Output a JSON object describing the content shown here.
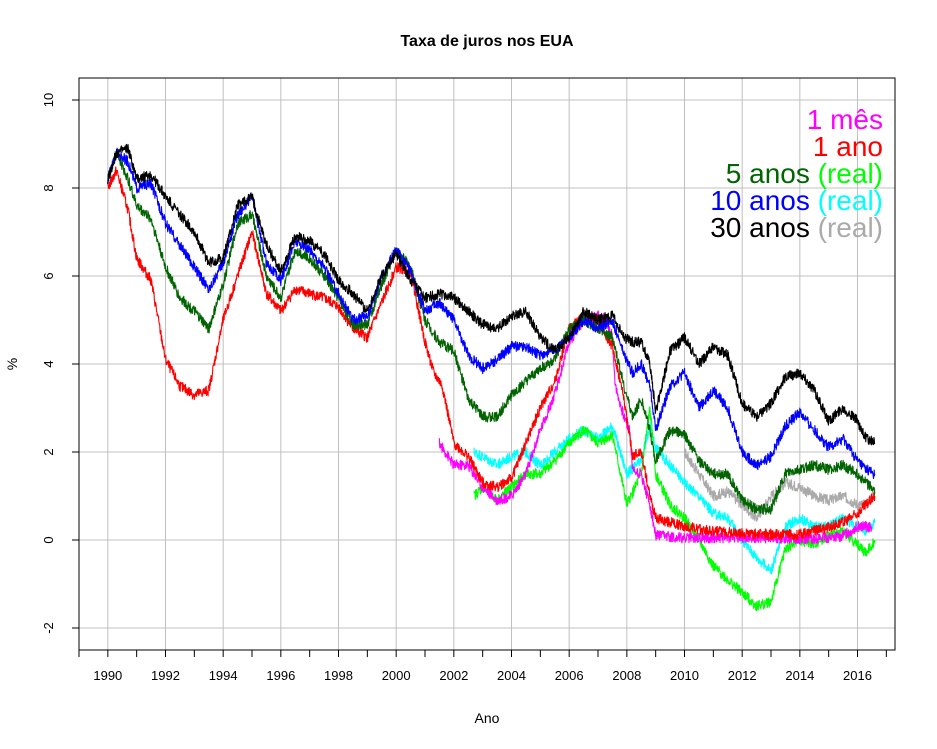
{
  "chart_data": {
    "type": "line",
    "title": "Taxa de juros nos EUA",
    "xlabel": "Ano",
    "ylabel": "%",
    "xlim": [
      1989.0,
      2017.3
    ],
    "ylim": [
      -2.5,
      10.5
    ],
    "grid": true,
    "x_ticks": [
      1990,
      1992,
      1994,
      1996,
      1998,
      2000,
      2002,
      2004,
      2006,
      2008,
      2010,
      2012,
      2014,
      2016
    ],
    "x_tick_labels": [
      "1990",
      "1992",
      "1994",
      "1996",
      "1998",
      "2000",
      "2002",
      "2004",
      "2006",
      "2008",
      "2010",
      "2012",
      "2014",
      "2016"
    ],
    "y_ticks": [
      -2,
      0,
      2,
      4,
      6,
      8,
      10
    ],
    "y_tick_labels": [
      "-2",
      "0",
      "2",
      "4",
      "6",
      "8",
      "10"
    ],
    "legend": {
      "position": "top-right",
      "rows": [
        {
          "parts": [
            {
              "text": "1 mês",
              "color": "#ff00ff"
            }
          ]
        },
        {
          "parts": [
            {
              "text": "1 ano",
              "color": "#ff0000"
            }
          ]
        },
        {
          "parts": [
            {
              "text": "5 anos",
              "color": "#006400"
            },
            {
              "text": " (real)",
              "color": "#00ff00"
            }
          ]
        },
        {
          "parts": [
            {
              "text": "10 anos",
              "color": "#0000ff"
            },
            {
              "text": " (real)",
              "color": "#00ffff"
            }
          ]
        },
        {
          "parts": [
            {
              "text": "30 anos",
              "color": "#000000"
            },
            {
              "text": " (real)",
              "color": "#aaaaaa"
            }
          ]
        }
      ]
    },
    "series": [
      {
        "name": "30 anos (real)",
        "color": "#aaaaaa",
        "x": [
          2010.0,
          2010.5,
          2011.0,
          2011.5,
          2012.0,
          2012.5,
          2013.0,
          2013.5,
          2014.0,
          2014.5,
          2015.0,
          2015.5,
          2016.0,
          2016.3,
          2016.6
        ],
        "y": [
          2.0,
          1.5,
          1.0,
          1.1,
          0.8,
          0.5,
          1.0,
          1.3,
          1.2,
          1.0,
          0.9,
          1.0,
          0.8,
          0.8,
          1.1
        ]
      },
      {
        "name": "10 anos (real)",
        "color": "#00ffff",
        "x": [
          2002.7,
          2003.0,
          2003.5,
          2004.0,
          2004.5,
          2005.0,
          2005.5,
          2006.0,
          2006.5,
          2007.0,
          2007.5,
          2008.0,
          2008.5,
          2008.8,
          2009.0,
          2009.5,
          2010.0,
          2010.5,
          2011.0,
          2011.5,
          2012.0,
          2012.5,
          2013.0,
          2013.5,
          2014.0,
          2014.5,
          2015.0,
          2015.5,
          2016.0,
          2016.3,
          2016.6
        ],
        "y": [
          2.0,
          1.9,
          1.7,
          1.9,
          2.0,
          1.7,
          2.0,
          2.3,
          2.5,
          2.3,
          2.6,
          1.5,
          1.8,
          2.6,
          2.1,
          1.7,
          1.3,
          1.0,
          0.6,
          0.5,
          0.0,
          -0.4,
          -0.7,
          0.3,
          0.5,
          0.3,
          0.3,
          0.5,
          0.3,
          0.2,
          0.4
        ]
      },
      {
        "name": "5 anos (real)",
        "color": "#00ff00",
        "x": [
          2002.7,
          2003.0,
          2003.5,
          2004.0,
          2004.5,
          2005.0,
          2005.5,
          2006.0,
          2006.5,
          2007.0,
          2007.5,
          2008.0,
          2008.5,
          2008.8,
          2009.0,
          2009.5,
          2010.0,
          2010.5,
          2011.0,
          2011.5,
          2012.0,
          2012.5,
          2013.0,
          2013.5,
          2014.0,
          2014.5,
          2015.0,
          2015.5,
          2016.0,
          2016.3,
          2016.6
        ],
        "y": [
          1.0,
          1.2,
          0.9,
          1.2,
          1.5,
          1.5,
          1.8,
          2.2,
          2.5,
          2.2,
          2.4,
          0.8,
          1.5,
          3.0,
          1.5,
          0.8,
          0.5,
          0.0,
          -0.6,
          -0.9,
          -1.2,
          -1.5,
          -1.4,
          -0.2,
          0.0,
          -0.1,
          0.1,
          0.2,
          -0.1,
          -0.3,
          0.0
        ]
      },
      {
        "name": "1 mês",
        "color": "#ff00ff",
        "x": [
          2001.5,
          2002.0,
          2002.5,
          2003.0,
          2003.5,
          2004.0,
          2004.5,
          2005.0,
          2005.5,
          2006.0,
          2006.5,
          2007.0,
          2007.3,
          2007.5,
          2007.6,
          2007.9,
          2008.1,
          2008.2,
          2008.5,
          2008.8,
          2009.0,
          2010.0,
          2011.0,
          2012.0,
          2013.0,
          2014.0,
          2015.0,
          2015.5,
          2016.0,
          2016.5
        ],
        "y": [
          2.2,
          1.7,
          1.7,
          1.2,
          0.9,
          1.0,
          1.5,
          2.5,
          3.3,
          4.5,
          5.0,
          5.1,
          5.0,
          4.6,
          3.5,
          2.8,
          2.5,
          1.6,
          1.5,
          0.8,
          0.1,
          0.05,
          0.05,
          0.05,
          0.05,
          0.03,
          0.05,
          0.1,
          0.3,
          0.3
        ]
      },
      {
        "name": "1 ano",
        "color": "#ff0000",
        "x": [
          1990.0,
          1990.3,
          1990.7,
          1991.0,
          1991.5,
          1992.0,
          1992.5,
          1993.0,
          1993.5,
          1994.0,
          1994.5,
          1995.0,
          1995.5,
          1996.0,
          1996.5,
          1997.0,
          1997.5,
          1998.0,
          1998.5,
          1999.0,
          1999.5,
          2000.0,
          2000.5,
          2001.0,
          2001.3,
          2001.6,
          2002.0,
          2002.5,
          2003.0,
          2003.5,
          2004.0,
          2004.5,
          2005.0,
          2005.5,
          2006.0,
          2006.5,
          2007.0,
          2007.5,
          2007.9,
          2008.2,
          2008.5,
          2008.8,
          2009.0,
          2009.5,
          2010.0,
          2011.0,
          2012.0,
          2013.0,
          2014.0,
          2015.0,
          2015.5,
          2016.0,
          2016.6
        ],
        "y": [
          8.0,
          8.4,
          7.5,
          6.4,
          5.9,
          4.1,
          3.5,
          3.3,
          3.4,
          5.0,
          6.0,
          7.0,
          5.6,
          5.2,
          5.7,
          5.6,
          5.5,
          5.3,
          4.8,
          4.6,
          5.4,
          6.2,
          6.1,
          4.5,
          3.8,
          3.5,
          2.2,
          1.9,
          1.3,
          1.2,
          1.4,
          2.2,
          3.0,
          3.6,
          4.8,
          5.1,
          5.0,
          4.4,
          3.2,
          1.9,
          2.0,
          1.0,
          0.5,
          0.4,
          0.3,
          0.2,
          0.15,
          0.13,
          0.12,
          0.3,
          0.4,
          0.6,
          1.0
        ]
      },
      {
        "name": "5 anos",
        "color": "#006400",
        "x": [
          1990.0,
          1990.3,
          1990.7,
          1991.0,
          1991.5,
          1992.0,
          1992.5,
          1993.0,
          1993.5,
          1994.0,
          1994.5,
          1995.0,
          1995.5,
          1996.0,
          1996.5,
          1997.0,
          1997.5,
          1998.0,
          1998.5,
          1999.0,
          1999.5,
          2000.0,
          2000.5,
          2001.0,
          2001.5,
          2002.0,
          2002.5,
          2003.0,
          2003.5,
          2004.0,
          2004.5,
          2005.0,
          2005.5,
          2006.0,
          2006.5,
          2007.0,
          2007.5,
          2007.9,
          2008.2,
          2008.5,
          2008.8,
          2009.0,
          2009.5,
          2010.0,
          2010.5,
          2011.0,
          2011.5,
          2012.0,
          2012.5,
          2013.0,
          2013.5,
          2014.0,
          2014.5,
          2015.0,
          2015.5,
          2016.0,
          2016.3,
          2016.6
        ],
        "y": [
          8.2,
          8.8,
          8.2,
          7.6,
          7.3,
          6.2,
          5.5,
          5.2,
          4.8,
          5.8,
          7.2,
          7.4,
          6.0,
          5.5,
          6.6,
          6.4,
          6.0,
          5.5,
          4.9,
          4.9,
          5.8,
          6.6,
          6.2,
          5.0,
          4.5,
          4.3,
          3.2,
          2.8,
          2.8,
          3.3,
          3.6,
          3.9,
          4.1,
          4.8,
          5.0,
          4.8,
          4.6,
          3.5,
          2.8,
          3.2,
          2.5,
          1.8,
          2.5,
          2.4,
          1.8,
          1.5,
          1.5,
          0.9,
          0.7,
          0.7,
          1.5,
          1.6,
          1.7,
          1.6,
          1.7,
          1.5,
          1.3,
          1.1
        ]
      },
      {
        "name": "10 anos",
        "color": "#0000ff",
        "x": [
          1990.0,
          1990.3,
          1990.7,
          1991.0,
          1991.5,
          1992.0,
          1992.5,
          1993.0,
          1993.5,
          1994.0,
          1994.5,
          1995.0,
          1995.5,
          1996.0,
          1996.5,
          1997.0,
          1997.5,
          1998.0,
          1998.5,
          1999.0,
          1999.5,
          2000.0,
          2000.5,
          2001.0,
          2001.5,
          2002.0,
          2002.5,
          2003.0,
          2003.5,
          2004.0,
          2004.5,
          2005.0,
          2005.5,
          2006.0,
          2006.5,
          2007.0,
          2007.5,
          2007.9,
          2008.2,
          2008.5,
          2008.8,
          2009.0,
          2009.5,
          2010.0,
          2010.5,
          2011.0,
          2011.5,
          2012.0,
          2012.5,
          2013.0,
          2013.5,
          2014.0,
          2014.5,
          2015.0,
          2015.5,
          2016.0,
          2016.3,
          2016.6
        ],
        "y": [
          8.2,
          8.8,
          8.6,
          8.0,
          8.1,
          7.2,
          6.7,
          6.2,
          5.7,
          6.3,
          7.4,
          7.8,
          6.3,
          5.9,
          6.8,
          6.6,
          6.2,
          5.6,
          5.0,
          5.1,
          6.0,
          6.6,
          6.1,
          5.2,
          5.4,
          5.0,
          4.2,
          3.9,
          4.1,
          4.4,
          4.4,
          4.2,
          4.3,
          4.6,
          5.0,
          4.8,
          5.0,
          4.2,
          3.8,
          4.0,
          3.5,
          2.5,
          3.5,
          3.8,
          3.0,
          3.4,
          3.0,
          2.0,
          1.7,
          1.9,
          2.6,
          2.9,
          2.5,
          2.1,
          2.3,
          1.8,
          1.6,
          1.5
        ]
      },
      {
        "name": "30 anos",
        "color": "#000000",
        "x": [
          1990.0,
          1990.3,
          1990.7,
          1991.0,
          1991.5,
          1992.0,
          1992.5,
          1993.0,
          1993.5,
          1994.0,
          1994.5,
          1995.0,
          1995.5,
          1996.0,
          1996.5,
          1997.0,
          1997.5,
          1998.0,
          1998.5,
          1999.0,
          1999.5,
          2000.0,
          2000.5,
          2001.0,
          2001.5,
          2002.0,
          2002.5,
          2003.0,
          2003.5,
          2004.0,
          2004.5,
          2005.0,
          2005.5,
          2006.0,
          2006.5,
          2007.0,
          2007.5,
          2007.9,
          2008.2,
          2008.5,
          2008.8,
          2009.0,
          2009.5,
          2010.0,
          2010.5,
          2011.0,
          2011.5,
          2012.0,
          2012.5,
          2013.0,
          2013.5,
          2014.0,
          2014.5,
          2015.0,
          2015.5,
          2016.0,
          2016.3,
          2016.6
        ],
        "y": [
          8.2,
          8.8,
          8.9,
          8.2,
          8.3,
          7.8,
          7.4,
          7.0,
          6.3,
          6.4,
          7.6,
          7.8,
          6.7,
          6.1,
          6.9,
          6.8,
          6.5,
          5.9,
          5.6,
          5.2,
          6.0,
          6.5,
          5.9,
          5.5,
          5.6,
          5.5,
          5.2,
          4.9,
          4.8,
          5.1,
          5.2,
          4.6,
          4.3,
          4.6,
          5.2,
          5.0,
          5.1,
          4.6,
          4.5,
          4.5,
          4.0,
          2.9,
          4.3,
          4.6,
          4.0,
          4.4,
          4.2,
          3.1,
          2.8,
          3.1,
          3.7,
          3.8,
          3.4,
          2.7,
          3.0,
          2.7,
          2.3,
          2.2
        ]
      }
    ]
  }
}
